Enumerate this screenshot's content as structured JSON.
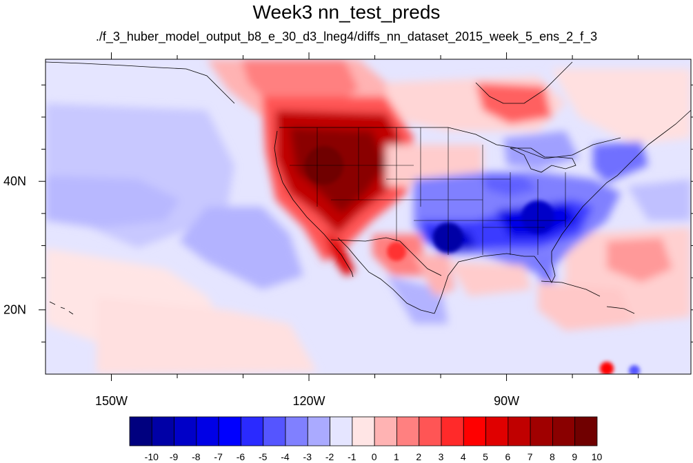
{
  "title": "Week3 nn_test_preds",
  "subtitle": "./f_3_huber_model_output_b8_e_30_d3_lneg4/diffs_nn_dataset_2015_week_5_ens_2_f_3",
  "map": {
    "lon_range": [
      -160,
      -62
    ],
    "lat_range": [
      10,
      59
    ],
    "lon_ticks": [
      {
        "value": -150,
        "label": "150W"
      },
      {
        "value": -120,
        "label": "120W"
      },
      {
        "value": -90,
        "label": "90W"
      }
    ],
    "lat_ticks": [
      {
        "value": 40,
        "label": "40N"
      },
      {
        "value": 20,
        "label": "20N"
      }
    ],
    "background_level": -1
  },
  "colorbar": {
    "labels": [
      "-10",
      "-9",
      "-8",
      "-7",
      "-6",
      "-5",
      "-4",
      "-3",
      "-2",
      "-1",
      "0",
      "1",
      "2",
      "3",
      "4",
      "5",
      "6",
      "7",
      "8",
      "9",
      "10"
    ],
    "colors": [
      "#00007f",
      "#0000a6",
      "#0000c8",
      "#0000e6",
      "#0000ff",
      "#2a2aff",
      "#5555ff",
      "#8080ff",
      "#aaaaff",
      "#e5e5ff",
      "#ffe5e5",
      "#ffb3b3",
      "#ff8080",
      "#ff5555",
      "#ff2a2a",
      "#ff0000",
      "#e00000",
      "#c00000",
      "#a00000",
      "#8a0000",
      "#700000"
    ]
  }
}
